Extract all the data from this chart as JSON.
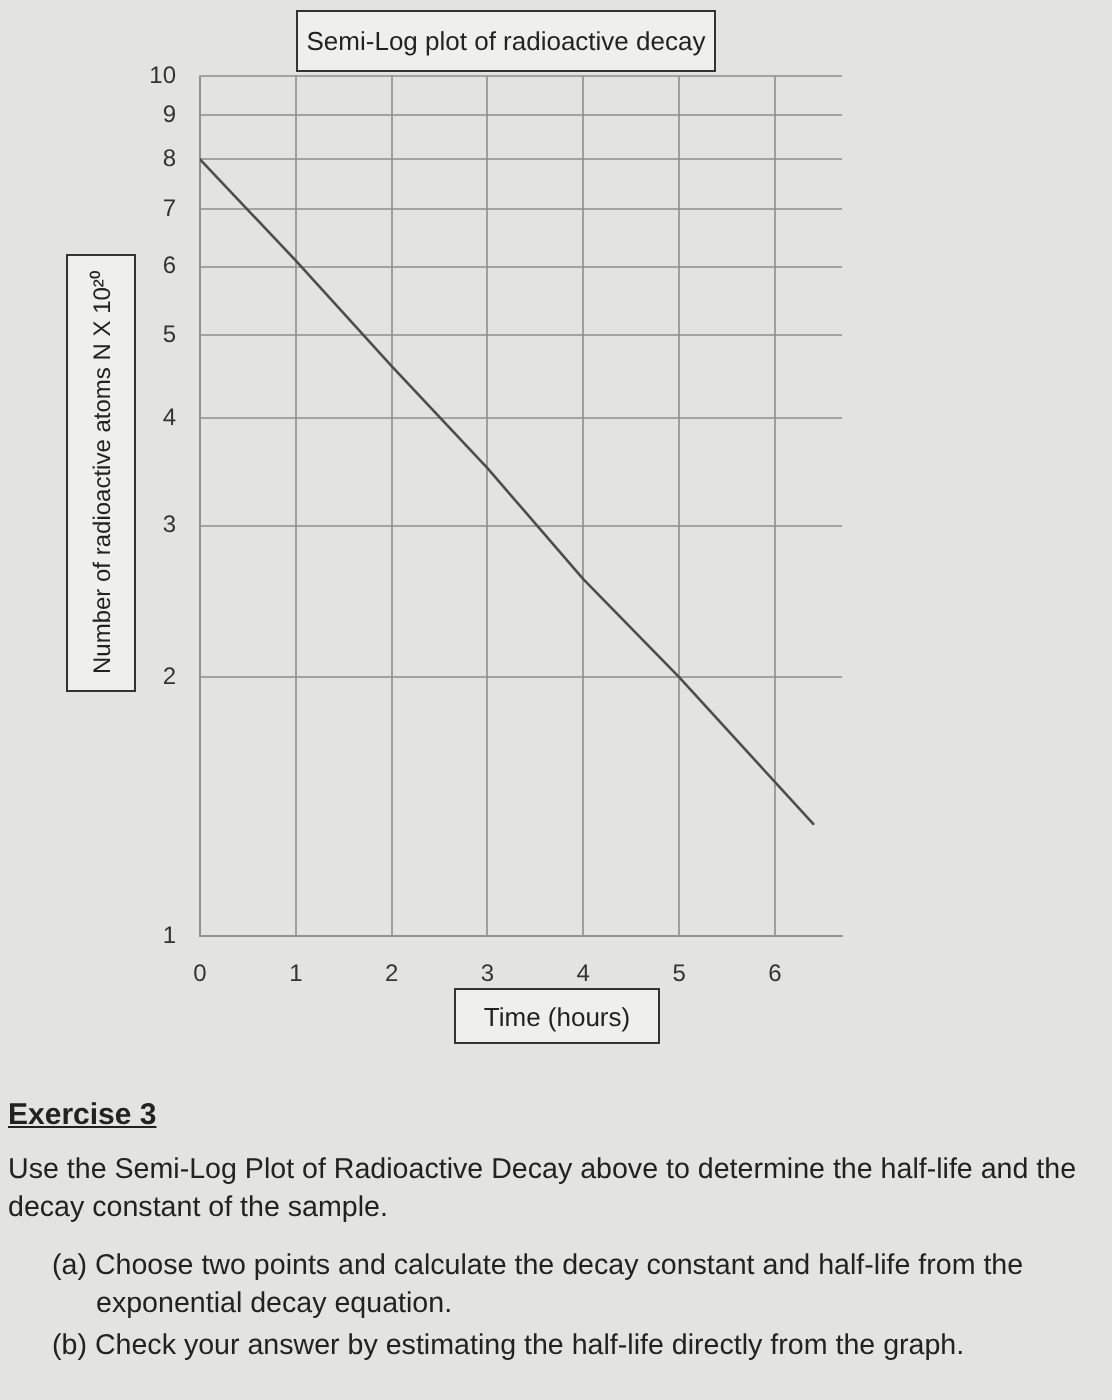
{
  "chart_data": {
    "type": "line",
    "title": "Semi-Log plot of radioactive decay",
    "xlabel": "Time (hours)",
    "ylabel": "Number of radioactive atoms N X 10²⁰",
    "x": [
      0,
      1,
      2,
      3,
      4,
      5,
      6.4
    ],
    "values": [
      8,
      6.1,
      4.6,
      3.5,
      2.6,
      2,
      1.35
    ],
    "color": "#4d4d4d",
    "xlim": [
      0,
      6.7
    ],
    "xticks": [
      0,
      1,
      2,
      3,
      4,
      5,
      6
    ],
    "ylim": [
      1,
      10
    ],
    "yticks": [
      1,
      2,
      3,
      4,
      5,
      6,
      7,
      8,
      9,
      10
    ],
    "log": "y",
    "grid": true,
    "annotations": [
      "Exercise 3",
      "Use the Semi-Log Plot of Radioactive Decay above to determine the half-life and the decay constant of the sample.",
      "(a) Choose two points and calculate the decay constant and half-life from the exponential decay equation.",
      "(b) Check your answer by estimating the half-life directly from the graph."
    ]
  }
}
